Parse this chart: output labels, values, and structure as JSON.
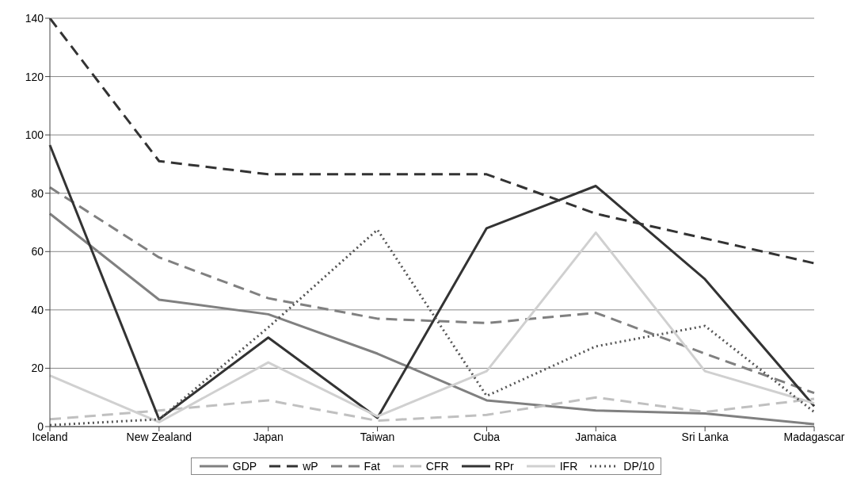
{
  "chart_data": {
    "type": "line",
    "categories": [
      "Iceland",
      "New Zealand",
      "Japan",
      "Taiwan",
      "Cuba",
      "Jamaica",
      "Sri Lanka",
      "Madagascar"
    ],
    "series": [
      {
        "name": "GDP",
        "color": "#808080",
        "line_style": "solid",
        "values": [
          73,
          43.5,
          38.5,
          25,
          9,
          5.5,
          4.5,
          0.8
        ]
      },
      {
        "name": "wP",
        "color": "#333333",
        "line_style": "dashed",
        "values": [
          140,
          91,
          86.5,
          86.5,
          86.5,
          73,
          64.5,
          56
        ]
      },
      {
        "name": "Fat",
        "color": "#808080",
        "line_style": "dashed",
        "values": [
          82,
          58,
          44,
          37,
          35.5,
          39,
          25,
          11.5
        ]
      },
      {
        "name": "CFR",
        "color": "#c0c0c0",
        "line_style": "dashed",
        "values": [
          2.5,
          5.5,
          9,
          2,
          4,
          10,
          5,
          9.5
        ]
      },
      {
        "name": "RPr",
        "color": "#333333",
        "line_style": "solid",
        "values": [
          96.5,
          2.5,
          30.5,
          3,
          68,
          82.5,
          50.5,
          7
        ]
      },
      {
        "name": "IFR",
        "color": "#d0d0d0",
        "line_style": "solid",
        "values": [
          17.5,
          1.5,
          22,
          3.5,
          19,
          66.5,
          19,
          8
        ]
      },
      {
        "name": "DP/10",
        "color": "#555555",
        "line_style": "dotted",
        "values": [
          0.5,
          2.5,
          34,
          67.5,
          10.5,
          27.5,
          34.5,
          5
        ]
      }
    ],
    "ylim": [
      0,
      140
    ],
    "yticks": [
      0,
      20,
      40,
      60,
      80,
      100,
      120,
      140
    ],
    "grid": "y",
    "legend": "bottom",
    "marker": "none"
  }
}
